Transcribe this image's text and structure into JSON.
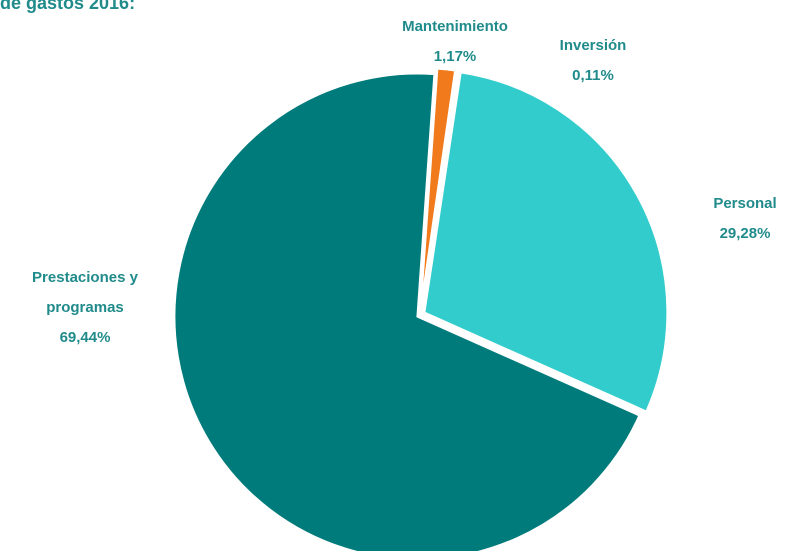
{
  "chart_data": {
    "type": "pie",
    "title": "de gastos 2016:",
    "categories": [
      "Mantenimiento",
      "Inversión",
      "Personal",
      "Prestaciones y programas"
    ],
    "values": [
      1.17,
      0.11,
      29.28,
      69.44
    ],
    "value_labels": [
      "1,17%",
      "0,11%",
      "29,28%",
      "69,44%"
    ],
    "colors": [
      "#f07a1c",
      "#2f6fa0",
      "#33cccc",
      "#007b7b"
    ]
  }
}
